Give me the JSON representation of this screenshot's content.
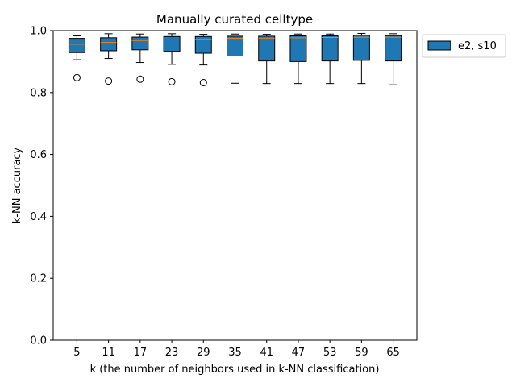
{
  "chart_data": {
    "type": "box",
    "title": "Manually curated celltype",
    "xlabel": "k (the number of neighbors used in k-NN classification)",
    "ylabel": "k-NN accuracy",
    "ylim": [
      0,
      1.0
    ],
    "yticks": [
      "0.0",
      "0.2",
      "0.4",
      "0.6",
      "0.8",
      "1.0"
    ],
    "categories": [
      "5",
      "11",
      "17",
      "23",
      "29",
      "35",
      "41",
      "47",
      "53",
      "59",
      "65"
    ],
    "legend": {
      "position": "outside-top-right",
      "entries": [
        "e2, s10"
      ]
    },
    "grid": false,
    "series": [
      {
        "name": "e2, s10",
        "color": "#1f77b4",
        "median_color": "#ff7f0e",
        "boxes": [
          {
            "whislo": 0.906,
            "q1": 0.929,
            "med": 0.956,
            "q3": 0.975,
            "whishi": 0.983,
            "fliers": [
              0.848
            ]
          },
          {
            "whislo": 0.91,
            "q1": 0.935,
            "med": 0.962,
            "q3": 0.977,
            "whishi": 0.99,
            "fliers": [
              0.837
            ]
          },
          {
            "whislo": 0.897,
            "q1": 0.938,
            "med": 0.968,
            "q3": 0.979,
            "whishi": 0.989,
            "fliers": [
              0.843
            ]
          },
          {
            "whislo": 0.891,
            "q1": 0.933,
            "med": 0.97,
            "q3": 0.981,
            "whishi": 0.99,
            "fliers": [
              0.835
            ]
          },
          {
            "whislo": 0.889,
            "q1": 0.927,
            "med": 0.972,
            "q3": 0.981,
            "whishi": 0.988,
            "fliers": [
              0.832
            ]
          },
          {
            "whislo": 0.83,
            "q1": 0.918,
            "med": 0.975,
            "q3": 0.982,
            "whishi": 0.989,
            "fliers": []
          },
          {
            "whislo": 0.829,
            "q1": 0.902,
            "med": 0.976,
            "q3": 0.982,
            "whishi": 0.988,
            "fliers": []
          },
          {
            "whislo": 0.829,
            "q1": 0.9,
            "med": 0.977,
            "q3": 0.983,
            "whishi": 0.989,
            "fliers": []
          },
          {
            "whislo": 0.829,
            "q1": 0.902,
            "med": 0.978,
            "q3": 0.983,
            "whishi": 0.989,
            "fliers": []
          },
          {
            "whislo": 0.829,
            "q1": 0.904,
            "med": 0.979,
            "q3": 0.985,
            "whishi": 0.991,
            "fliers": []
          },
          {
            "whislo": 0.825,
            "q1": 0.902,
            "med": 0.979,
            "q3": 0.984,
            "whishi": 0.99,
            "fliers": []
          }
        ]
      }
    ]
  }
}
